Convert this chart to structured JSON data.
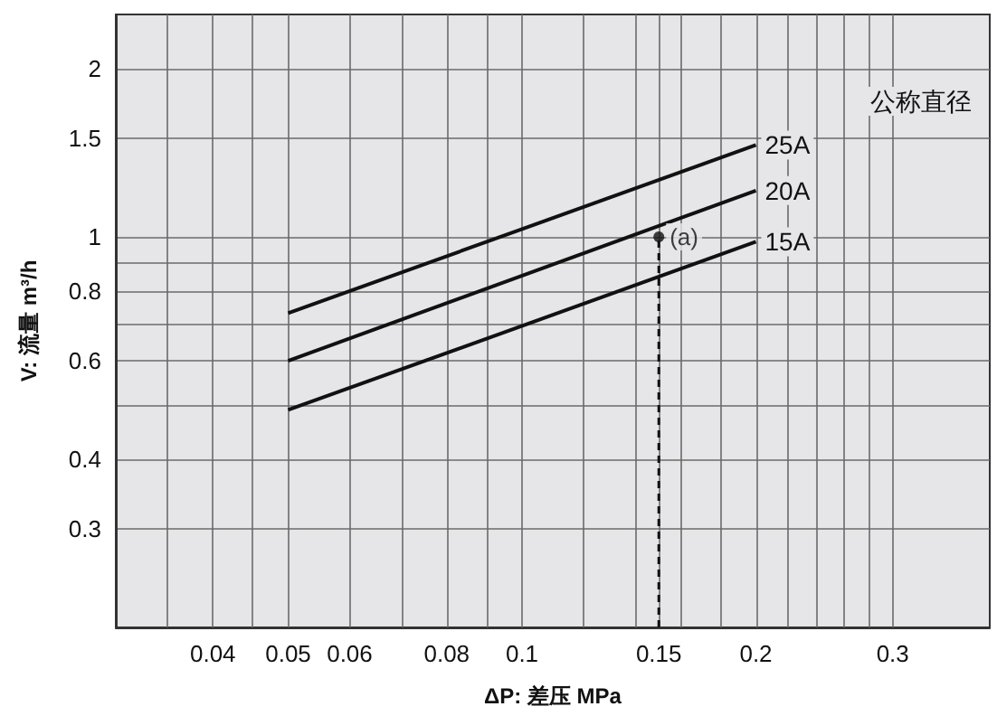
{
  "chart_data": {
    "type": "line",
    "xlabel": "ΔP: 差压 MPa",
    "ylabel": "V: 流量 m³/h",
    "legend_title": "公称直径",
    "log": "xy",
    "grid": true,
    "legend": false,
    "marker": "none",
    "line_style": "solid",
    "xlim": [
      0.03,
      0.4
    ],
    "ylim": [
      0.2,
      2.5
    ],
    "xticks": [
      {
        "value": 0.035,
        "label": null
      },
      0.04,
      {
        "value": 0.045,
        "label": null
      },
      0.05,
      0.06,
      {
        "value": 0.07,
        "label": null
      },
      0.08,
      {
        "value": 0.09,
        "label": null
      },
      0.1,
      {
        "value": 0.12,
        "label": null
      },
      {
        "value": 0.14,
        "label": null
      },
      0.15,
      {
        "value": 0.16,
        "label": null
      },
      {
        "value": 0.18,
        "label": null
      },
      0.2,
      {
        "value": 0.22,
        "label": null
      },
      {
        "value": 0.24,
        "label": null
      },
      {
        "value": 0.26,
        "label": null
      },
      {
        "value": 0.28,
        "label": null
      },
      0.3
    ],
    "yticks": [
      0.3,
      0.4,
      {
        "value": 0.5,
        "label": null
      },
      0.6,
      {
        "value": 0.7,
        "label": null
      },
      0.8,
      {
        "value": 0.9,
        "label": null
      },
      1,
      1.5,
      2
    ],
    "x": [
      0.05,
      0.2
    ],
    "series": [
      {
        "name": "25A",
        "color": "#111111",
        "values": [
          0.73,
          1.46
        ]
      },
      {
        "name": "20A",
        "color": "#111111",
        "values": [
          0.6,
          1.21
        ]
      },
      {
        "name": "15A",
        "color": "#111111",
        "values": [
          0.49,
          0.98
        ]
      }
    ],
    "annotations": [
      {
        "text": "(a)",
        "x": 0.15,
        "y": 1
      }
    ]
  }
}
